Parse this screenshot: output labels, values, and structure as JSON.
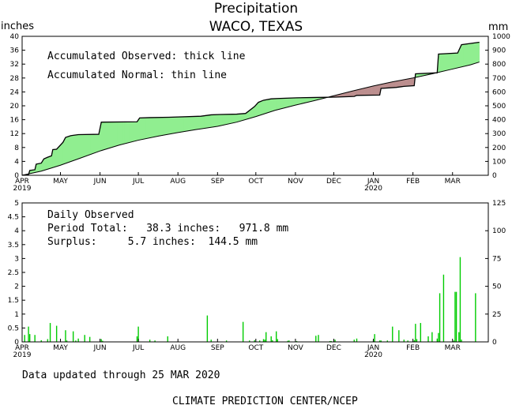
{
  "chart_data": [
    {
      "type": "area",
      "title": "Precipitation",
      "subtitle": "WACO, TEXAS",
      "ylabel_left": "inches",
      "ylabel_right": "mm",
      "ylim": [
        0,
        40
      ],
      "yticks": [
        0,
        4,
        8,
        12,
        16,
        20,
        24,
        28,
        32,
        36,
        40
      ],
      "ylim_right": [
        0,
        1000
      ],
      "yticks_right": [
        0,
        100,
        200,
        300,
        400,
        500,
        600,
        700,
        800,
        900,
        1000
      ],
      "x_months": [
        "APR",
        "MAY",
        "JUN",
        "JUL",
        "AUG",
        "SEP",
        "OCT",
        "NOV",
        "DEC",
        "JAN",
        "FEB",
        "MAR"
      ],
      "x_years": [
        {
          "month": "APR",
          "year": "2019"
        },
        {
          "month": "JAN",
          "year": "2020"
        }
      ],
      "annotations": [
        "Accumulated Observed: thick line",
        "Accumulated Normal: thin line"
      ],
      "surplus_color": "#90ee90",
      "deficit_color": "#bc8f8f",
      "series": [
        {
          "name": "Accumulated Observed",
          "style": "thick",
          "x_days": [
            0,
            5,
            6,
            10,
            11,
            15,
            17,
            20,
            23,
            24,
            27,
            32,
            34,
            38,
            40,
            44,
            60,
            62,
            90,
            92,
            100,
            115,
            140,
            148,
            155,
            168,
            175,
            182,
            185,
            189,
            195,
            200,
            215,
            230,
            245,
            260,
            262,
            280,
            281,
            293,
            299,
            307,
            308,
            325,
            326,
            341,
            344,
            358
          ],
          "y": [
            0,
            0.2,
            1.4,
            1.6,
            3.2,
            3.5,
            4.7,
            5.2,
            5.6,
            7.4,
            7.5,
            9.5,
            10.9,
            11.4,
            11.5,
            11.7,
            11.8,
            15.3,
            15.4,
            16.5,
            16.6,
            16.7,
            17.0,
            17.4,
            17.5,
            17.6,
            17.8,
            19.8,
            21.0,
            21.6,
            22.0,
            22.1,
            22.3,
            22.4,
            22.5,
            22.7,
            23.0,
            23.1,
            25.0,
            25.3,
            25.6,
            25.8,
            29.2,
            29.5,
            34.9,
            35.2,
            37.6,
            38.3
          ]
        },
        {
          "name": "Accumulated Normal",
          "style": "thin",
          "x_days": [
            0,
            15,
            30,
            46,
            61,
            76,
            91,
            107,
            122,
            137,
            153,
            168,
            183,
            198,
            214,
            229,
            244,
            259,
            275,
            290,
            306,
            321,
            336,
            351,
            358
          ],
          "y": [
            0,
            1.2,
            2.9,
            5.0,
            7.0,
            8.7,
            10.1,
            11.3,
            12.3,
            13.2,
            14.1,
            15.3,
            16.9,
            18.7,
            20.2,
            21.5,
            22.9,
            24.3,
            25.7,
            26.9,
            28.0,
            29.2,
            30.5,
            31.8,
            32.6
          ]
        }
      ]
    },
    {
      "type": "bar",
      "title": "Daily Observed",
      "ylabel_left": "inches",
      "ylabel_right": "mm",
      "ylim": [
        0,
        5
      ],
      "yticks": [
        0,
        0.5,
        1,
        1.5,
        2,
        2.5,
        3,
        3.5,
        4,
        4.5,
        5
      ],
      "ylim_right": [
        0,
        125
      ],
      "yticks_right": [
        0,
        25,
        50,
        75,
        100,
        125
      ],
      "x_months": [
        "APR",
        "MAY",
        "JUN",
        "JUL",
        "AUG",
        "SEP",
        "OCT",
        "NOV",
        "DEC",
        "JAN",
        "FEB",
        "MAR"
      ],
      "x_years": [
        {
          "month": "APR",
          "year": "2019"
        },
        {
          "month": "JAN",
          "year": "2020"
        }
      ],
      "bar_color": "#00cc00",
      "x_days": [
        2,
        5,
        6,
        10,
        15,
        20,
        22,
        27,
        34,
        35,
        40,
        42,
        44,
        49,
        53,
        62,
        63,
        90,
        91,
        100,
        104,
        114,
        145,
        148,
        160,
        173,
        178,
        182,
        186,
        189,
        190,
        191,
        195,
        196,
        199,
        200,
        208,
        209,
        215,
        230,
        232,
        241,
        242,
        245,
        260,
        262,
        275,
        276,
        280,
        281,
        286,
        290,
        295,
        299,
        302,
        307,
        308,
        309,
        312,
        318,
        321,
        325,
        326,
        327,
        330,
        338,
        339,
        340,
        342,
        343,
        344,
        355
      ],
      "values": [
        0.25,
        0.55,
        0.28,
        0.25,
        0.06,
        0.1,
        0.68,
        0.58,
        0.42,
        0.05,
        0.38,
        0.05,
        0.12,
        0.25,
        0.18,
        0.1,
        0.04,
        0.2,
        0.55,
        0.08,
        0.05,
        0.2,
        0.95,
        0.08,
        0.05,
        0.72,
        0.05,
        0.06,
        0.05,
        0.1,
        0.08,
        0.35,
        0.2,
        0.06,
        0.38,
        0.1,
        0.04,
        0.05,
        0.03,
        0.22,
        0.25,
        0.03,
        0.03,
        0.08,
        0.08,
        0.12,
        0.05,
        0.28,
        0.05,
        0.05,
        0.05,
        0.55,
        0.42,
        0.08,
        0.05,
        0.06,
        0.65,
        0.1,
        0.68,
        0.2,
        0.35,
        0.12,
        0.32,
        1.75,
        2.42,
        0.05,
        1.8,
        1.8,
        0.35,
        3.05,
        0.08,
        1.75
      ]
    }
  ],
  "daily_text": {
    "label": "Daily Observed",
    "period_total": "Period Total:   38.3 inches:   971.8 mm",
    "surplus": "Surplus:     5.7 inches:  144.5 mm"
  },
  "footer": {
    "updated": "Data updated through 25 MAR 2020",
    "credit": "CLIMATE PREDICTION CENTER/NCEP"
  }
}
